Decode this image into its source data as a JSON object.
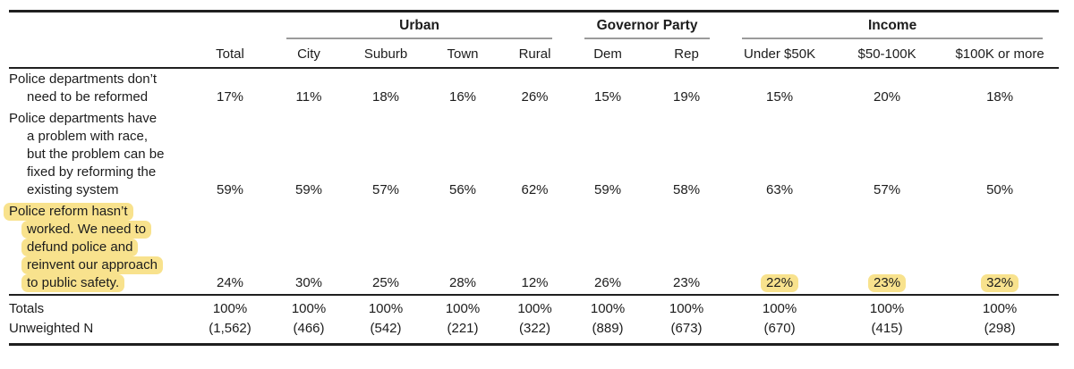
{
  "colors": {
    "highlight": "#f8e28d",
    "rule_dark": "#1f1f1f",
    "rule_gray": "#9b9b9b",
    "text": "#1c1c1c",
    "background": "#ffffff"
  },
  "table": {
    "group_headers": [
      {
        "label": "",
        "colspan": 2
      },
      {
        "label": "Urban",
        "colspan": 4
      },
      {
        "label": "Governor Party",
        "colspan": 2
      },
      {
        "label": "Income",
        "colspan": 3
      }
    ],
    "column_headers": [
      "",
      "Total",
      "City",
      "Suburb",
      "Town",
      "Rural",
      "Dem",
      "Rep",
      "Under $50K",
      "$50-100K",
      "$100K or more"
    ],
    "rows": [
      {
        "label_lines": [
          "Police departments don’t",
          "need to be reformed"
        ],
        "highlighted": false,
        "values": [
          "17%",
          "11%",
          "18%",
          "16%",
          "26%",
          "15%",
          "19%",
          "15%",
          "20%",
          "18%"
        ],
        "highlight_cells": []
      },
      {
        "label_lines": [
          "Police departments have",
          "a problem with race,",
          "but the problem can be",
          "fixed by reforming the",
          "existing system"
        ],
        "highlighted": false,
        "values": [
          "59%",
          "59%",
          "57%",
          "56%",
          "62%",
          "59%",
          "58%",
          "63%",
          "57%",
          "50%"
        ],
        "highlight_cells": []
      },
      {
        "label_lines": [
          "Police reform hasn’t",
          "worked. We need to",
          "defund police and",
          "reinvent our approach",
          "to public safety."
        ],
        "highlighted": true,
        "values": [
          "24%",
          "30%",
          "25%",
          "28%",
          "12%",
          "26%",
          "23%",
          "22%",
          "23%",
          "32%"
        ],
        "highlight_cells": [
          7,
          8,
          9
        ]
      }
    ],
    "footer_rows": [
      {
        "label": "Totals",
        "values": [
          "100%",
          "100%",
          "100%",
          "100%",
          "100%",
          "100%",
          "100%",
          "100%",
          "100%",
          "100%"
        ]
      },
      {
        "label": "Unweighted N",
        "values": [
          "(1,562)",
          "(466)",
          "(542)",
          "(221)",
          "(322)",
          "(889)",
          "(673)",
          "(670)",
          "(415)",
          "(298)"
        ]
      }
    ]
  }
}
